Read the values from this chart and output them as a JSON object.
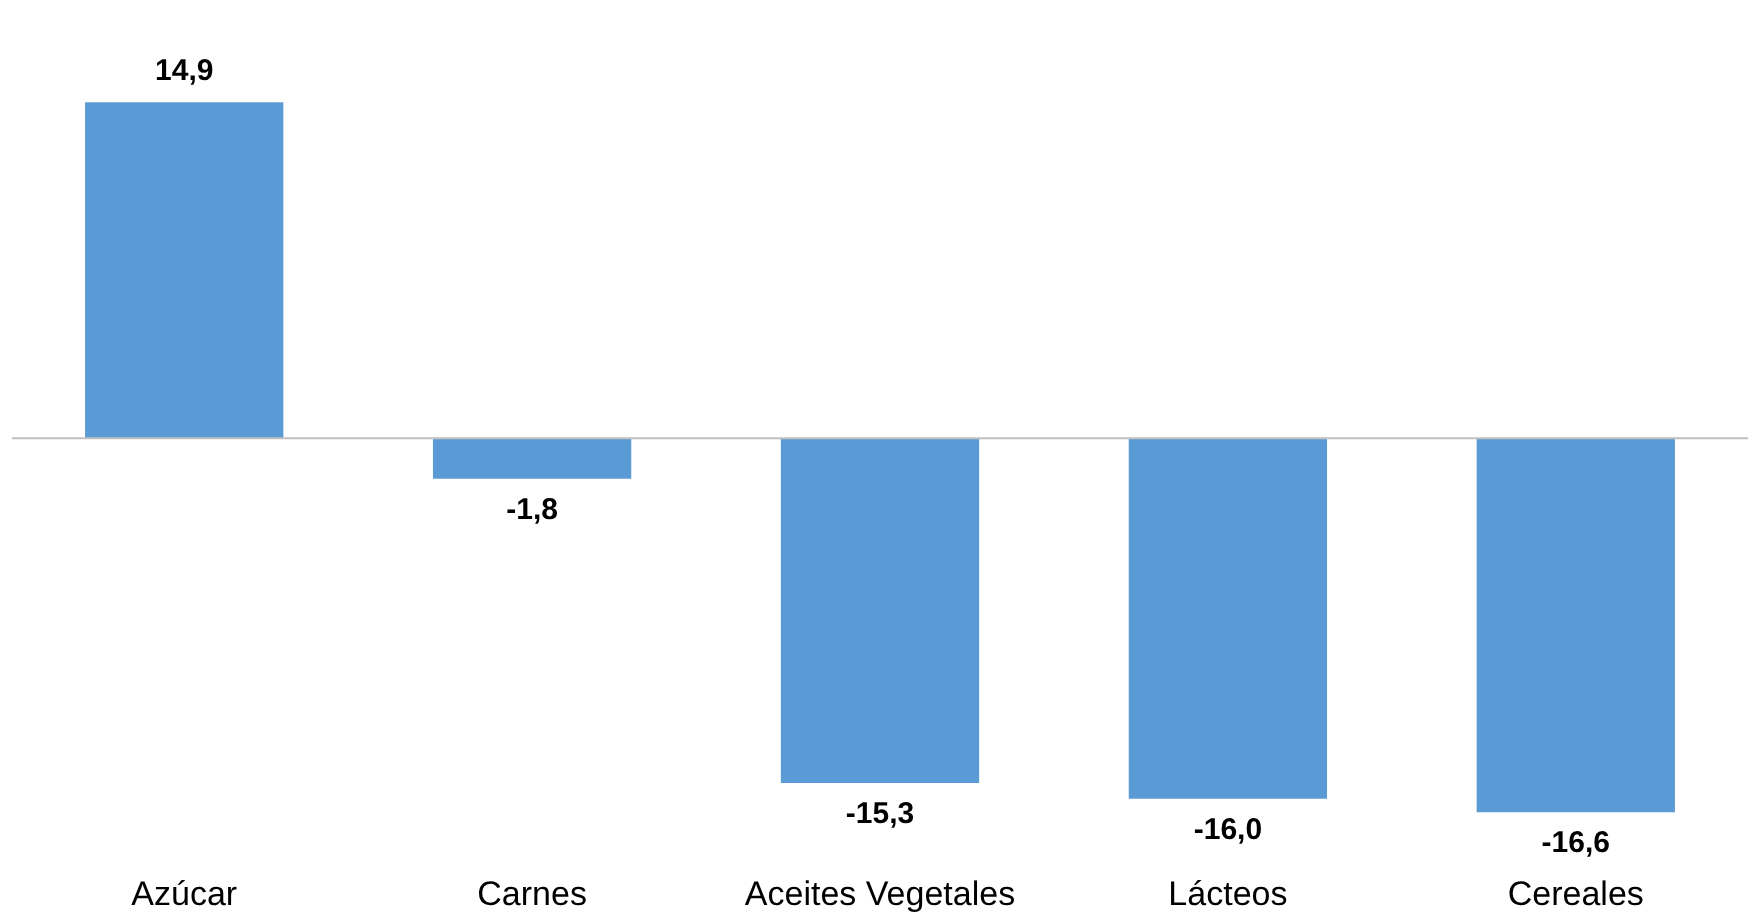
{
  "chart_data": {
    "type": "bar",
    "categories": [
      "Azúcar",
      "Carnes",
      "Aceites Vegetales",
      "Lácteos",
      "Cereales"
    ],
    "values": [
      14.9,
      -1.8,
      -15.3,
      -16.0,
      -16.6
    ],
    "value_labels": [
      "14,9",
      "-1,8",
      "-15,3",
      "-16,0",
      "-16,6"
    ],
    "color": "#5b9bd5"
  }
}
